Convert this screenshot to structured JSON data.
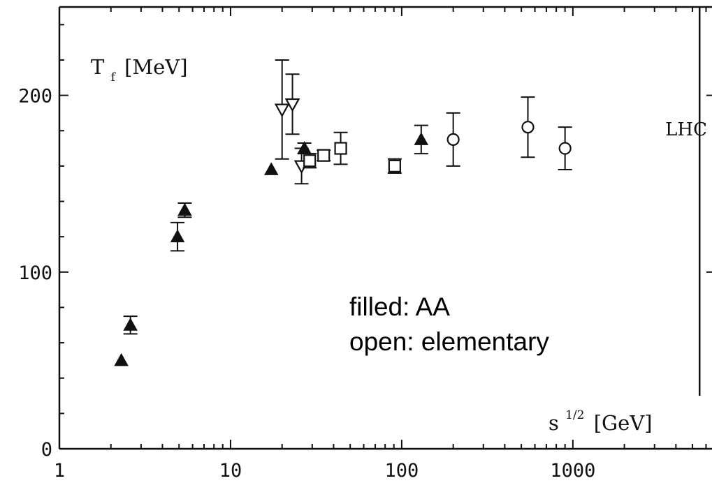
{
  "chart_data": {
    "type": "scatter",
    "xscale": "log",
    "xlim": [
      1,
      6500
    ],
    "ylim": [
      0,
      250
    ],
    "grid": false,
    "xlabel": "s",
    "xlabel_superscript": "1/2",
    "xlabel_unit": "[GeV]",
    "ylabel": "T",
    "ylabel_subscript": "f",
    "ylabel_unit": "[MeV]",
    "x_ticks": [
      {
        "value": 1,
        "label": "1"
      },
      {
        "value": 10,
        "label": "10"
      },
      {
        "value": 100,
        "label": "100"
      },
      {
        "value": 1000,
        "label": "1000"
      }
    ],
    "y_ticks": [
      {
        "value": 0,
        "label": "0"
      },
      {
        "value": 100,
        "label": "100"
      },
      {
        "value": 200,
        "label": "200"
      }
    ],
    "vertical_line": {
      "x": 5500,
      "label": "LHC"
    },
    "annotations": [
      "filled: AA",
      "open: elementary"
    ],
    "series": [
      {
        "marker": "filled-triangle-up",
        "points": [
          {
            "x": 2.3,
            "y": 50,
            "err": 0
          },
          {
            "x": 2.6,
            "y": 70,
            "err": 5
          },
          {
            "x": 4.9,
            "y": 120,
            "err": 8
          },
          {
            "x": 5.4,
            "y": 135,
            "err": 4
          },
          {
            "x": 17.3,
            "y": 158,
            "err": 0
          },
          {
            "x": 27,
            "y": 170,
            "err": 3
          },
          {
            "x": 130,
            "y": 175,
            "err": 8
          }
        ]
      },
      {
        "marker": "open-triangle-down",
        "points": [
          {
            "x": 20,
            "y": 192,
            "err": 28
          },
          {
            "x": 23,
            "y": 195,
            "err": 17
          },
          {
            "x": 26,
            "y": 160,
            "err": 10
          }
        ]
      },
      {
        "marker": "open-square",
        "points": [
          {
            "x": 29,
            "y": 163,
            "err": 4
          },
          {
            "x": 35,
            "y": 166,
            "err": 3
          },
          {
            "x": 44,
            "y": 170,
            "err": 9
          },
          {
            "x": 91,
            "y": 160,
            "err": 4
          }
        ]
      },
      {
        "marker": "open-circle",
        "points": [
          {
            "x": 200,
            "y": 175,
            "err": 15
          },
          {
            "x": 546,
            "y": 182,
            "err": 17
          },
          {
            "x": 900,
            "y": 170,
            "err": 12
          }
        ]
      }
    ]
  }
}
